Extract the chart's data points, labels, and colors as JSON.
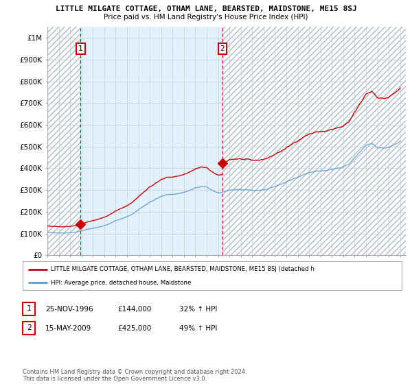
{
  "title": "LITTLE MILGATE COTTAGE, OTHAM LANE, BEARSTED, MAIDSTONE, ME15 8SJ",
  "subtitle": "Price paid vs. HM Land Registry's House Price Index (HPI)",
  "legend_line1": "LITTLE MILGATE COTTAGE, OTHAM LANE, BEARSTED, MAIDSTONE, ME15 8SJ (detached h",
  "legend_line2": "HPI: Average price, detached house, Maidstone",
  "footer": "Contains HM Land Registry data © Crown copyright and database right 2024.\nThis data is licensed under the Open Government Licence v3.0.",
  "annotation1": {
    "label": "1",
    "date": "25-NOV-1996",
    "price": "£144,000",
    "hpi": "32% ↑ HPI"
  },
  "annotation2": {
    "label": "2",
    "date": "15-MAY-2009",
    "price": "£425,000",
    "hpi": "49% ↑ HPI"
  },
  "xmin": 1994.0,
  "xmax": 2025.5,
  "ymin": 0,
  "ymax": 1050000,
  "yticks": [
    0,
    100000,
    200000,
    300000,
    400000,
    500000,
    600000,
    700000,
    800000,
    900000,
    1000000
  ],
  "ytick_labels": [
    "£0",
    "£100K",
    "£200K",
    "£300K",
    "£400K",
    "£500K",
    "£600K",
    "£700K",
    "£800K",
    "£900K",
    "£1M"
  ],
  "hpi_color": "#5b9bd5",
  "sale_color": "#cc0000",
  "hatch_color": "#c8d8e8",
  "fill_color": "#ddeeff",
  "marker1_x": 1996.92,
  "marker1_y": 144000,
  "marker2_x": 2009.38,
  "marker2_y": 425000,
  "vline1_x": 1996.92,
  "vline2_x": 2009.38,
  "background_color": "white"
}
